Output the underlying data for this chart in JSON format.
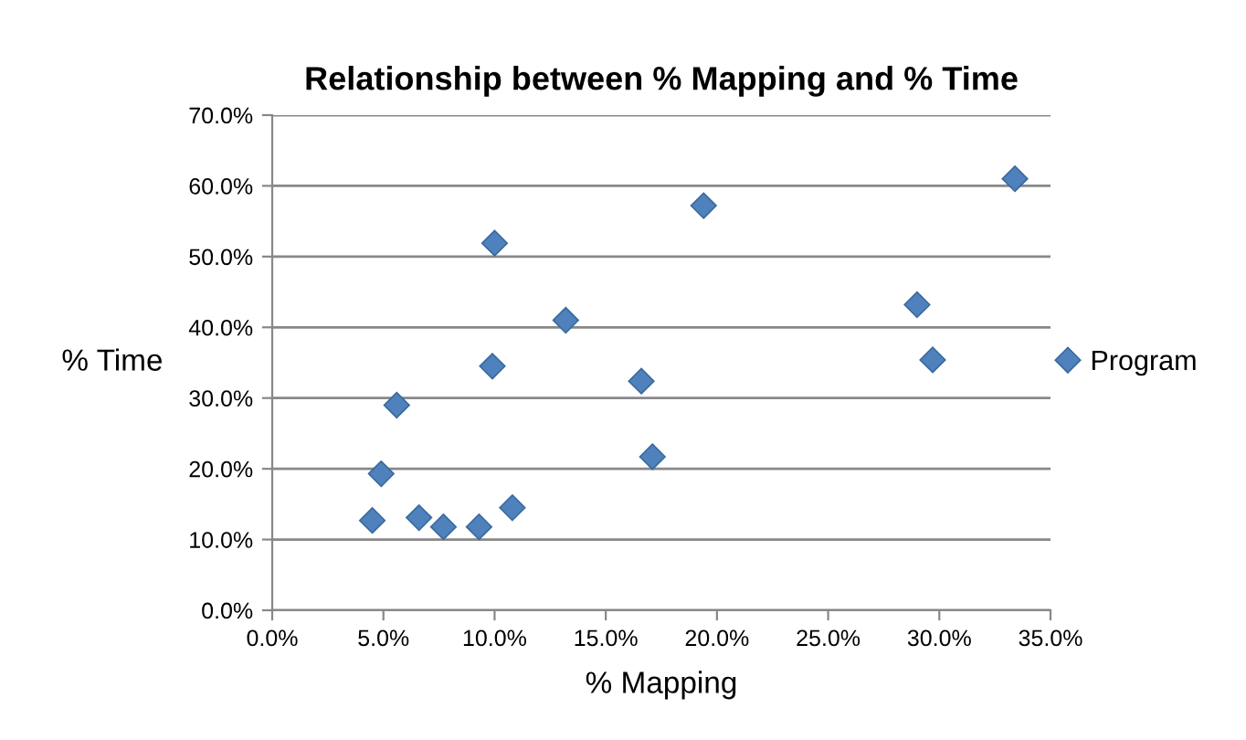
{
  "chart_data": {
    "type": "scatter",
    "title": "Relationship between % Mapping and % Time",
    "xlabel": "% Mapping",
    "ylabel": "% Time",
    "series": [
      {
        "name": "Program",
        "color": "#4f81bd",
        "x": [
          4.5,
          4.9,
          5.6,
          6.6,
          7.7,
          9.3,
          10.8,
          10.0,
          9.9,
          13.2,
          16.6,
          17.1,
          19.4,
          29.0,
          29.7,
          33.4
        ],
        "values": [
          12.7,
          19.3,
          29.0,
          13.1,
          11.8,
          11.8,
          14.5,
          51.9,
          34.5,
          41.0,
          32.4,
          21.7,
          57.2,
          43.2,
          35.4,
          61.0
        ]
      }
    ],
    "xlim": [
      0,
      35
    ],
    "ylim": [
      0,
      70
    ],
    "xticks": [
      {
        "value": 0,
        "label": "0.0%"
      },
      {
        "value": 5,
        "label": "5.0%"
      },
      {
        "value": 10,
        "label": "10.0%"
      },
      {
        "value": 15,
        "label": "15.0%"
      },
      {
        "value": 20,
        "label": "20.0%"
      },
      {
        "value": 25,
        "label": "25.0%"
      },
      {
        "value": 30,
        "label": "30.0%"
      },
      {
        "value": 35,
        "label": "35.0%"
      }
    ],
    "yticks": [
      {
        "value": 0,
        "label": "0.0%"
      },
      {
        "value": 10,
        "label": "10.0%"
      },
      {
        "value": 20,
        "label": "20.0%"
      },
      {
        "value": 30,
        "label": "30.0%"
      },
      {
        "value": 40,
        "label": "40.0%"
      },
      {
        "value": 50,
        "label": "50.0%"
      },
      {
        "value": 60,
        "label": "60.0%"
      },
      {
        "value": 70,
        "label": "70.0%"
      }
    ],
    "grid": "y",
    "legend": "right",
    "marker": "diamond"
  }
}
